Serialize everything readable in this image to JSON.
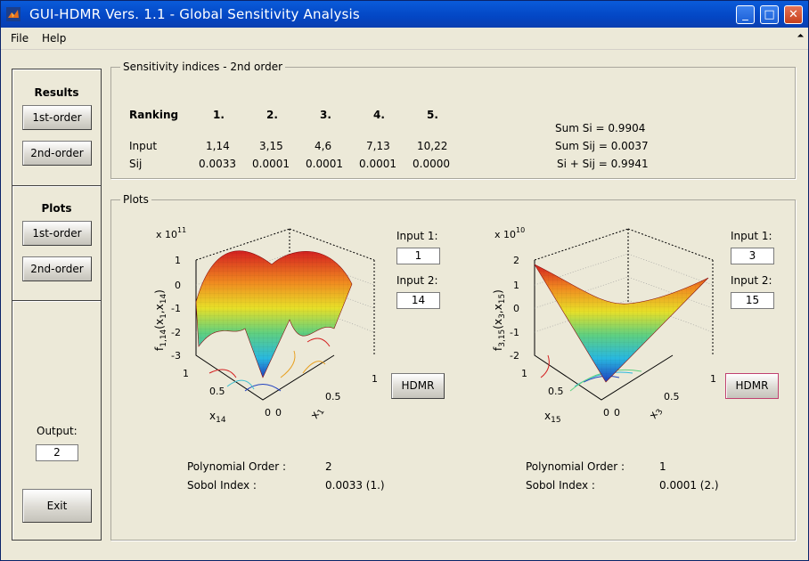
{
  "window": {
    "title": "GUI-HDMR Vers. 1.1 - Global Sensitivity Analysis",
    "minimize": "_",
    "maximize": "□",
    "close": "✕"
  },
  "menu": {
    "file": "File",
    "help": "Help"
  },
  "sidebar": {
    "results_heading": "Results",
    "results_first": "1st-order",
    "results_second": "2nd-order",
    "plots_heading": "Plots",
    "plots_first": "1st-order",
    "plots_second": "2nd-order",
    "output_label": "Output:",
    "output_value": "2",
    "exit": "Exit"
  },
  "sensitivity": {
    "title": "Sensitivity indices - 2nd order",
    "ranking_label": "Ranking",
    "input_label": "Input",
    "sij_label": "Sij",
    "ranks": [
      "1.",
      "2.",
      "3.",
      "4.",
      "5."
    ],
    "inputs": [
      "1,14",
      "3,15",
      "4,6",
      "7,13",
      "10,22"
    ],
    "sij": [
      "0.0033",
      "0.0001",
      "0.0001",
      "0.0001",
      "0.0000"
    ],
    "sum_si": "Sum Si   = 0.9904",
    "sum_sij": "Sum Sij   = 0.0037",
    "si_plus_sij": "Si + Sij = 0.9941"
  },
  "plots": {
    "title": "Plots",
    "left": {
      "exponent_prefix": "x 10",
      "exponent": "11",
      "z_ticks": [
        "1",
        "0",
        "-1",
        "-2",
        "-3"
      ],
      "zlabel_main": "f",
      "zlabel_sub": "1,14",
      "zlabel_args": "(x",
      "zlabel_a": "1",
      "zlabel_b": "14",
      "xlabel_main": "x",
      "xlabel_sub": "1",
      "ylabel_main": "x",
      "ylabel_sub": "14",
      "x_ticks": [
        "0",
        "0.5",
        "1"
      ],
      "y_ticks": [
        "0",
        "0.5",
        "1"
      ],
      "input1_label": "Input 1:",
      "input1_value": "1",
      "input2_label": "Input 2:",
      "input2_value": "14",
      "hdmr": "HDMR",
      "poly_label": "Polynomial Order :",
      "poly_value": "2",
      "sobol_label": "Sobol Index :",
      "sobol_value": "0.0033 (1.)"
    },
    "right": {
      "exponent_prefix": "x 10",
      "exponent": "10",
      "z_ticks": [
        "2",
        "1",
        "0",
        "-1",
        "-2"
      ],
      "zlabel_main": "f",
      "zlabel_sub": "3,15",
      "zlabel_args": "(x",
      "zlabel_a": "3",
      "zlabel_b": "15",
      "xlabel_main": "x",
      "xlabel_sub": "3",
      "ylabel_main": "x",
      "ylabel_sub": "15",
      "x_ticks": [
        "0",
        "0.5",
        "1"
      ],
      "y_ticks": [
        "0",
        "0.5",
        "1"
      ],
      "input1_label": "Input 1:",
      "input1_value": "3",
      "input2_label": "Input 2:",
      "input2_value": "15",
      "hdmr": "HDMR",
      "poly_label": "Polynomial Order :",
      "poly_value": "1",
      "sobol_label": "Sobol Index :",
      "sobol_value": "0.0001 (2.)"
    }
  }
}
